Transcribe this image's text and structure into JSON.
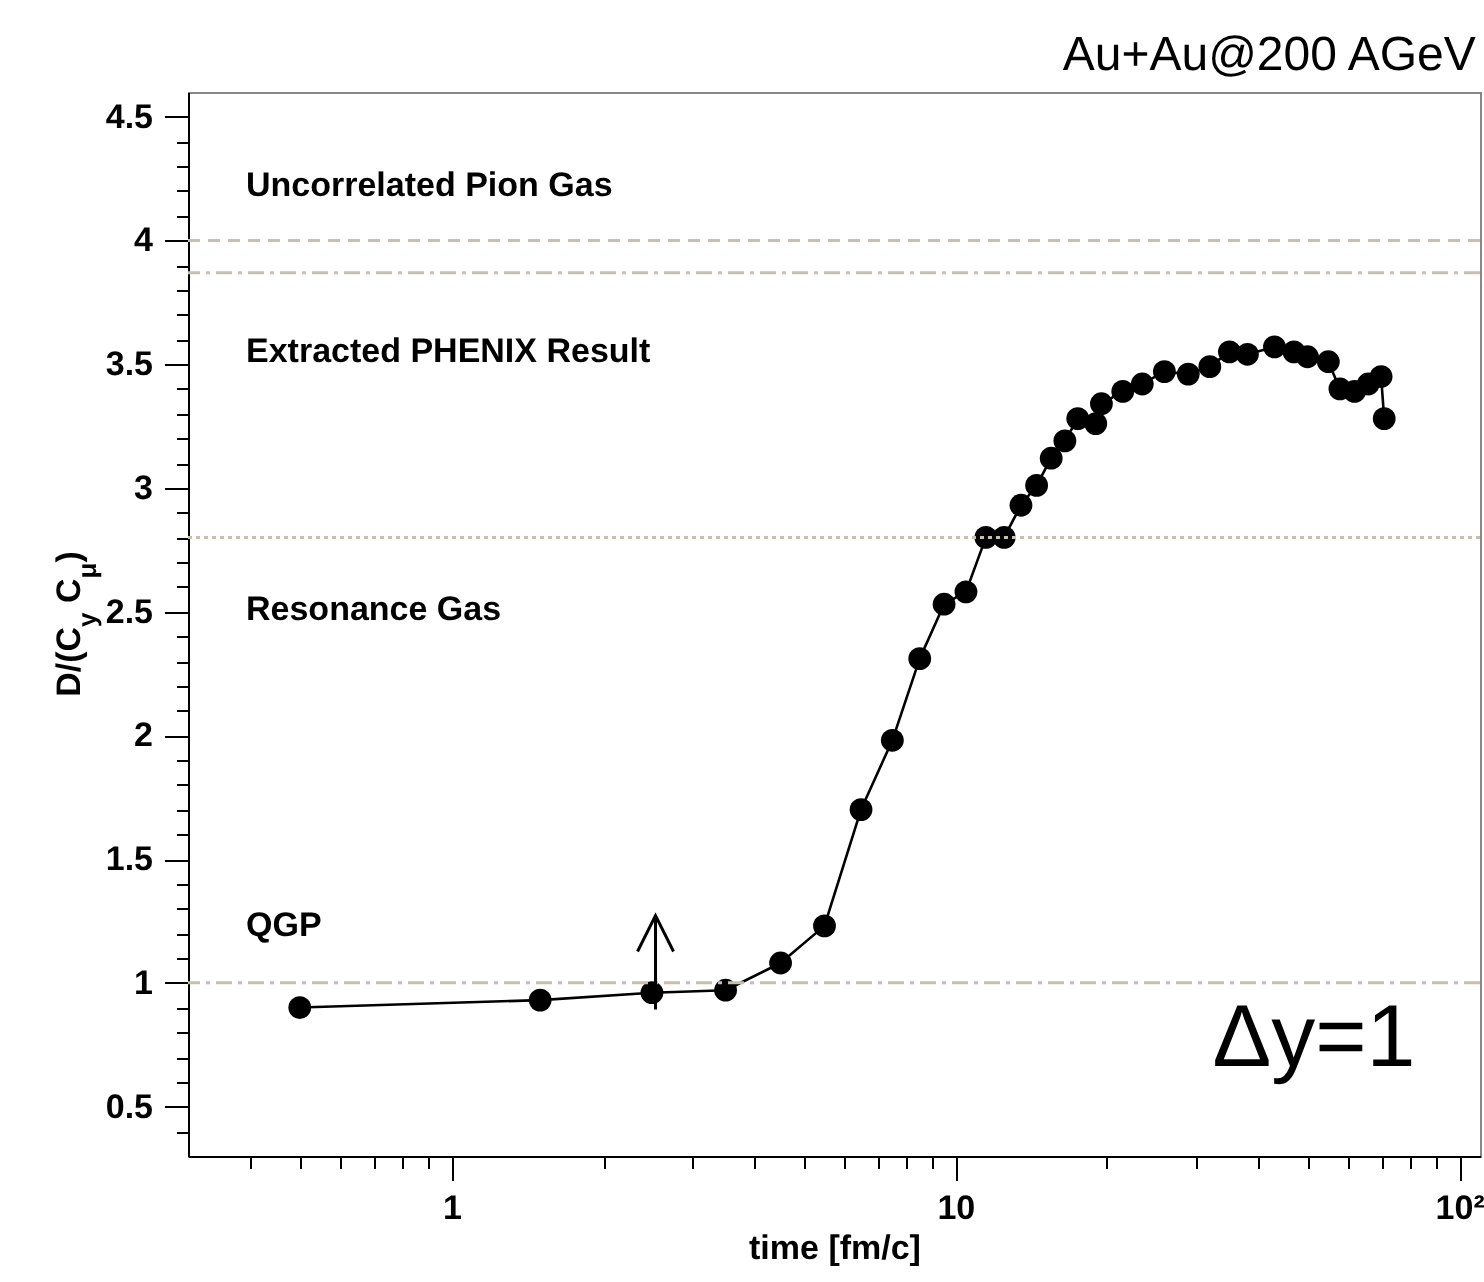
{
  "chart_data": {
    "type": "line",
    "title": "Au+Au@200 AGeV",
    "xlabel": "time [fm/c]",
    "ylabel": "D/(C$_{y}$ C$_{μ}$)",
    "log": "x",
    "marker": "circle",
    "line_style": "solid",
    "xlim": [
      0.3,
      110
    ],
    "ylim": [
      0.3,
      4.6
    ],
    "xticks": [
      {
        "value": 0.4,
        "label": null
      },
      {
        "value": 0.5,
        "label": null
      },
      {
        "value": 0.6,
        "label": null
      },
      {
        "value": 0.7,
        "label": null
      },
      {
        "value": 0.8,
        "label": null
      },
      {
        "value": 0.9,
        "label": null
      },
      1,
      {
        "value": 2,
        "label": null
      },
      {
        "value": 3,
        "label": null
      },
      {
        "value": 4,
        "label": null
      },
      {
        "value": 5,
        "label": null
      },
      {
        "value": 6,
        "label": null
      },
      {
        "value": 7,
        "label": null
      },
      {
        "value": 8,
        "label": null
      },
      {
        "value": 9,
        "label": null
      },
      10,
      {
        "value": 20,
        "label": null
      },
      {
        "value": 30,
        "label": null
      },
      {
        "value": 40,
        "label": null
      },
      {
        "value": 50,
        "label": null
      },
      {
        "value": 60,
        "label": null
      },
      {
        "value": 70,
        "label": null
      },
      {
        "value": 80,
        "label": null
      },
      {
        "value": 90,
        "label": null
      },
      {
        "value": 100,
        "label": "10²"
      }
    ],
    "yticks": [
      {
        "value": 0.4,
        "label": null
      },
      0.5,
      {
        "value": 0.6,
        "label": null
      },
      {
        "value": 0.7,
        "label": null
      },
      {
        "value": 0.8,
        "label": null
      },
      {
        "value": 0.9,
        "label": null
      },
      1,
      {
        "value": 1.1,
        "label": null
      },
      {
        "value": 1.2,
        "label": null
      },
      {
        "value": 1.3,
        "label": null
      },
      {
        "value": 1.4,
        "label": null
      },
      1.5,
      {
        "value": 1.6,
        "label": null
      },
      {
        "value": 1.7,
        "label": null
      },
      {
        "value": 1.8,
        "label": null
      },
      {
        "value": 1.9,
        "label": null
      },
      2,
      {
        "value": 2.1,
        "label": null
      },
      {
        "value": 2.2,
        "label": null
      },
      {
        "value": 2.3,
        "label": null
      },
      {
        "value": 2.4,
        "label": null
      },
      2.5,
      {
        "value": 2.6,
        "label": null
      },
      {
        "value": 2.7,
        "label": null
      },
      {
        "value": 2.8,
        "label": null
      },
      {
        "value": 2.9,
        "label": null
      },
      3,
      {
        "value": 3.1,
        "label": null
      },
      {
        "value": 3.2,
        "label": null
      },
      {
        "value": 3.3,
        "label": null
      },
      {
        "value": 3.4,
        "label": null
      },
      3.5,
      {
        "value": 3.6,
        "label": null
      },
      {
        "value": 3.7,
        "label": null
      },
      {
        "value": 3.8,
        "label": null
      },
      {
        "value": 3.9,
        "label": null
      },
      4,
      {
        "value": 4.1,
        "label": null
      },
      {
        "value": 4.2,
        "label": null
      },
      {
        "value": 4.3,
        "label": null
      },
      {
        "value": 4.4,
        "label": null
      },
      4.5
    ],
    "x": [
      0.5,
      1.5,
      2.5,
      3.5,
      4.5,
      5.5,
      6.5,
      7.5,
      8.5,
      9.5,
      10.5,
      11.5,
      12.5,
      13.5,
      14.5,
      15.5,
      16.5,
      17.5,
      19,
      19.5,
      21.5,
      23.5,
      26,
      29,
      32,
      35,
      38,
      43,
      47,
      50,
      55,
      58,
      62,
      66,
      70,
      71
    ],
    "series": [
      {
        "color": "#000000",
        "values": [
          0.9,
          0.93,
          0.96,
          0.97,
          1.08,
          1.23,
          1.7,
          1.98,
          2.31,
          2.53,
          2.58,
          2.8,
          2.8,
          2.93,
          3.01,
          3.12,
          3.19,
          3.28,
          3.26,
          3.34,
          3.39,
          3.42,
          3.47,
          3.46,
          3.49,
          3.55,
          3.54,
          3.57,
          3.55,
          3.53,
          3.51,
          3.4,
          3.39,
          3.42,
          3.45,
          3.28
        ]
      }
    ],
    "ref_lines": [
      {
        "axis": "y",
        "value": 4.0,
        "color": "#c8bfb0",
        "line_style": "dashed"
      },
      {
        "axis": "y",
        "value": 3.87,
        "color": "#c8bfb0",
        "line_style": "dashdot"
      },
      {
        "axis": "y",
        "value": 2.8,
        "color": "#c8bfb0",
        "line_style": "dotted"
      },
      {
        "axis": "y",
        "value": 1.0,
        "color": "#c8bfb0",
        "line_style": "dashdot"
      }
    ],
    "annotations": [
      "Uncorrelated Pion Gas",
      "Extracted PHENIX Result",
      "Resonance Gas",
      "QGP",
      "Δy=1"
    ]
  }
}
